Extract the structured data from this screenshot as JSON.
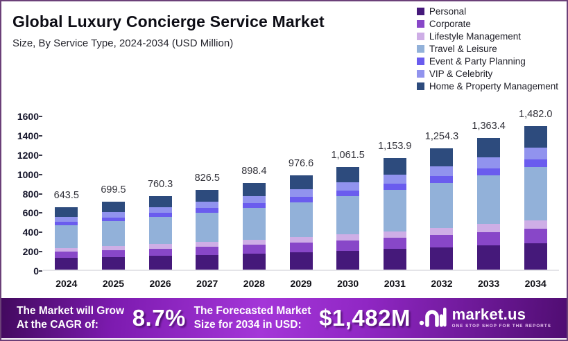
{
  "header": {
    "title": "Global Luxury Concierge Service Market",
    "subtitle": "Size, By Service Type, 2024-2034 (USD Million)"
  },
  "chart_data": {
    "type": "bar",
    "stacked": true,
    "title": "Global Luxury Concierge Service Market",
    "xlabel": "",
    "ylabel": "USD Million",
    "ylim": [
      0,
      1600
    ],
    "y_ticks": [
      0,
      200,
      400,
      600,
      800,
      1000,
      1200,
      1400,
      1600
    ],
    "grid": false,
    "legend_position": "top-right",
    "categories": [
      "2024",
      "2025",
      "2026",
      "2027",
      "2028",
      "2029",
      "2030",
      "2031",
      "2032",
      "2033",
      "2034"
    ],
    "totals": [
      643.5,
      699.5,
      760.3,
      826.5,
      898.4,
      976.6,
      1061.5,
      1153.9,
      1254.3,
      1363.4,
      1482.0
    ],
    "total_labels": [
      "643.5",
      "699.5",
      "760.3",
      "826.5",
      "898.4",
      "976.6",
      "1,061.5",
      "1,153.9",
      "1,254.3",
      "1,363.4",
      "1,482.0"
    ],
    "series": [
      {
        "name": "Personal",
        "color": "#45197A",
        "values": [
          119.0,
          129.4,
          140.7,
          152.9,
          166.2,
          180.7,
          196.4,
          213.5,
          232.0,
          252.2,
          274.2
        ]
      },
      {
        "name": "Corporate",
        "color": "#8847C8",
        "values": [
          64.4,
          70.0,
          76.0,
          82.7,
          89.8,
          97.7,
          106.2,
          115.4,
          125.4,
          136.3,
          148.2
        ]
      },
      {
        "name": "Lifestyle Management",
        "color": "#CEAEE6",
        "values": [
          38.6,
          42.0,
          45.6,
          49.6,
          53.9,
          58.6,
          63.7,
          69.2,
          75.3,
          81.8,
          88.9
        ]
      },
      {
        "name": "Travel & Leisure",
        "color": "#92B1D9",
        "values": [
          238.1,
          258.8,
          281.3,
          305.8,
          332.4,
          361.3,
          392.8,
          426.9,
          464.1,
          504.5,
          548.3
        ]
      },
      {
        "name": "Event & Party Planning",
        "color": "#6A5CEE",
        "values": [
          35.4,
          38.5,
          41.8,
          45.5,
          49.4,
          53.7,
          58.4,
          63.5,
          69.0,
          75.0,
          81.5
        ]
      },
      {
        "name": "VIP & Celebrity",
        "color": "#9193EE",
        "values": [
          51.5,
          56.0,
          60.8,
          66.1,
          71.9,
          78.1,
          84.9,
          92.3,
          100.3,
          109.1,
          118.6
        ]
      },
      {
        "name": "Home & Property Management",
        "color": "#2D4B7D",
        "values": [
          96.5,
          104.8,
          114.1,
          123.9,
          134.8,
          146.5,
          159.1,
          173.1,
          188.2,
          204.5,
          222.3
        ]
      }
    ]
  },
  "banner": {
    "cagr_label_line1": "The Market will Grow",
    "cagr_label_line2": "At the CAGR of:",
    "cagr_value": "8.7%",
    "forecast_label_line1": "The Forecasted Market",
    "forecast_label_line2": "Size for 2034 in USD:",
    "forecast_value": "$1,482M",
    "brand": "market.us",
    "brand_tagline": "ONE STOP SHOP FOR THE REPORTS",
    "gradient": [
      "#42095E",
      "#A436D8",
      "#500D72"
    ]
  },
  "frame": {
    "border_color": "#6B4078",
    "baseline_color": "#E4E4E8"
  }
}
